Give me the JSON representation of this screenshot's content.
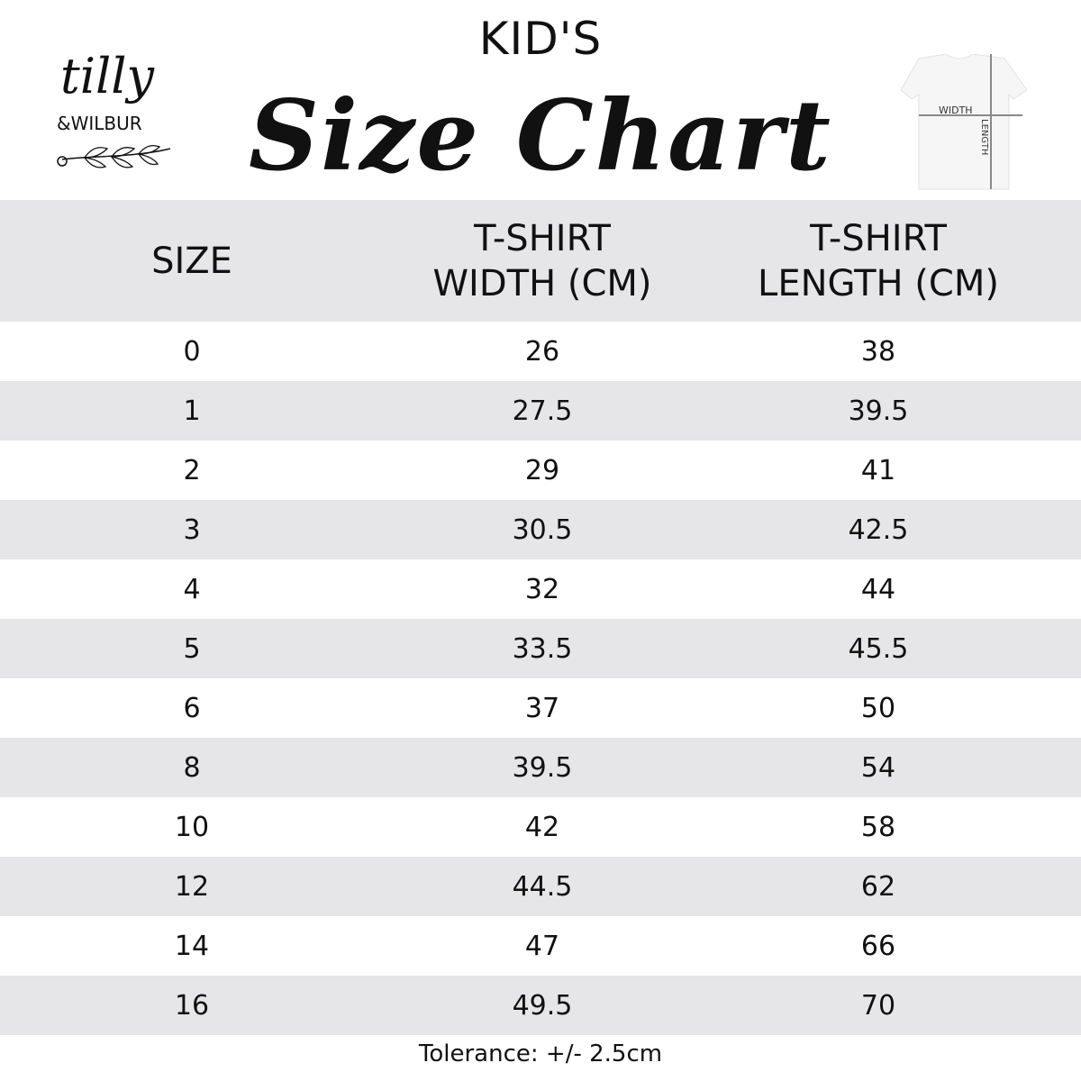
{
  "brand": {
    "logo_text_top": "tilly",
    "logo_text_bottom": "&WILBUR"
  },
  "header": {
    "kicker": "KID'S",
    "title": "Size Chart"
  },
  "diagram": {
    "width_label": "WIDTH",
    "length_label": "LENGTH"
  },
  "colors": {
    "row_alt": "#e6e6e8",
    "text": "#111111"
  },
  "table": {
    "columns": [
      {
        "line1": "SIZE",
        "line2": ""
      },
      {
        "line1": "T-SHIRT",
        "line2": "WIDTH (CM)"
      },
      {
        "line1": "T-SHIRT",
        "line2": "LENGTH (CM)"
      }
    ],
    "rows": [
      [
        "0",
        "26",
        "38"
      ],
      [
        "1",
        "27.5",
        "39.5"
      ],
      [
        "2",
        "29",
        "41"
      ],
      [
        "3",
        "30.5",
        "42.5"
      ],
      [
        "4",
        "32",
        "44"
      ],
      [
        "5",
        "33.5",
        "45.5"
      ],
      [
        "6",
        "37",
        "50"
      ],
      [
        "8",
        "39.5",
        "54"
      ],
      [
        "10",
        "42",
        "58"
      ],
      [
        "12",
        "44.5",
        "62"
      ],
      [
        "14",
        "47",
        "66"
      ],
      [
        "16",
        "49.5",
        "70"
      ]
    ]
  },
  "footer": {
    "tolerance": "Tolerance: +/- 2.5cm"
  }
}
